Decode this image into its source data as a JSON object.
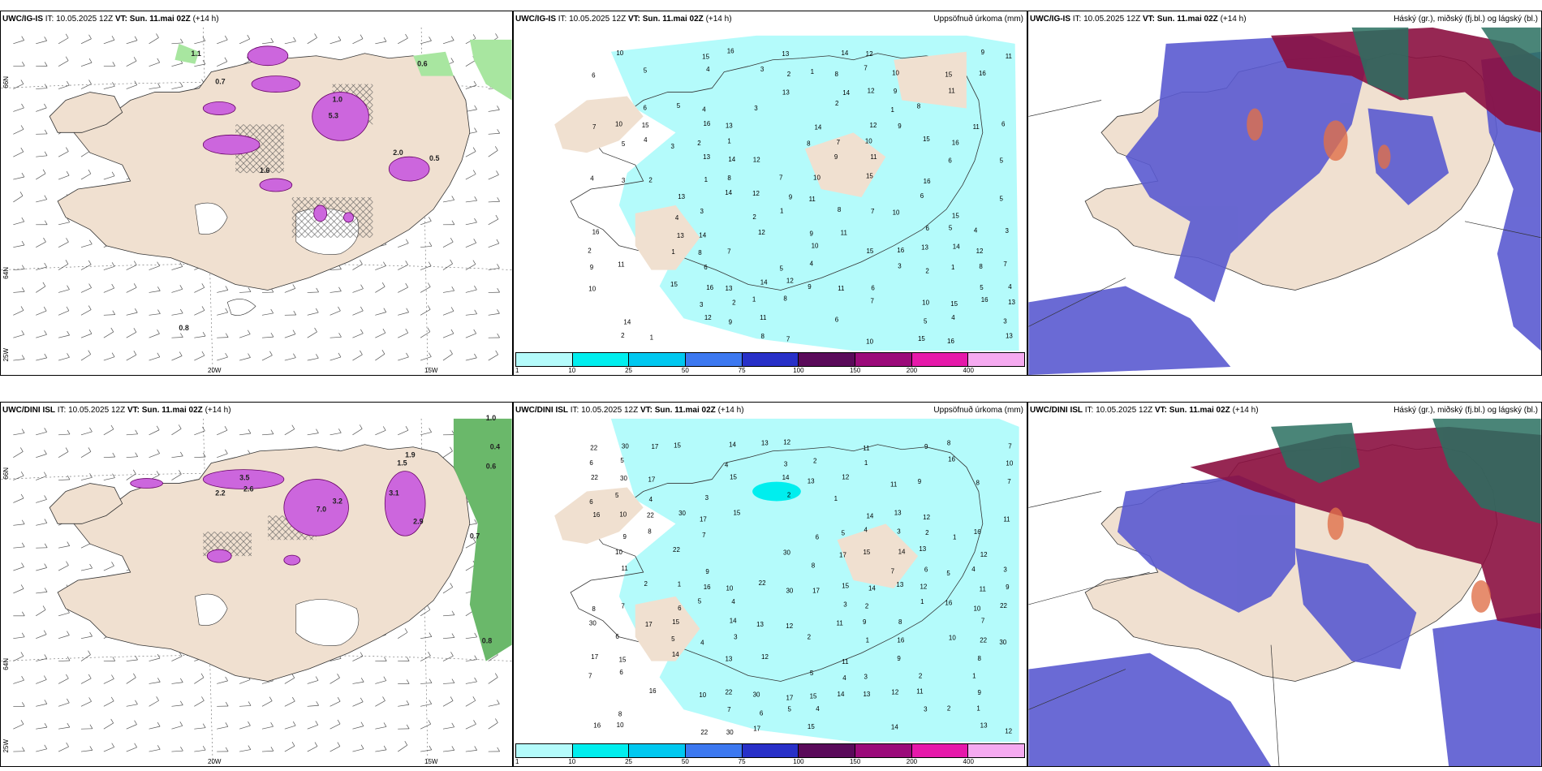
{
  "panels": {
    "p1": {
      "model": "UWC/IG-IS",
      "init": "IT: 10.05.2025 12Z",
      "vt": "VT: Sun. 11.mai 02Z",
      "lead": "(+14 h)"
    },
    "p2": {
      "model": "UWC/IG-IS",
      "init": "IT: 10.05.2025 12Z",
      "vt": "VT: Sun. 11.mai 02Z",
      "lead": "(+14 h)",
      "title": "Uppsöfnuð úrkoma (mm)"
    },
    "p3": {
      "model": "UWC/IG-IS",
      "init": "IT: 10.05.2025 12Z",
      "vt": "VT: Sun. 11.mai 02Z",
      "lead": "(+14 h)",
      "title": "Háský (gr.), miðský (fj.bl.) og lágský (bl.)"
    },
    "p4": {
      "model": "UWC/DINI ISL",
      "init": "IT: 10.05.2025 12Z",
      "vt": "VT: Sun. 11.mai 02Z",
      "lead": "(+14 h)"
    },
    "p5": {
      "model": "UWC/DINI ISL",
      "init": "IT: 10.05.2025 12Z",
      "vt": "VT: Sun. 11.mai 02Z",
      "lead": "(+14 h)",
      "title": "Uppsöfnuð úrkoma (mm)"
    },
    "p6": {
      "model": "UWC/DINI ISL",
      "init": "IT: 10.05.2025 12Z",
      "vt": "VT: Sun. 11.mai 02Z",
      "lead": "(+14 h)",
      "title": "Háský (gr.), miðský (fj.bl.) og lágský (bl.)"
    }
  },
  "axes": {
    "lat_top": "66N",
    "lat_bottom": "64N",
    "lon_left": "25W",
    "lon_mid": "20W",
    "lon_right": "15W"
  },
  "colorbar": {
    "labels": [
      "1",
      "10",
      "25",
      "50",
      "75",
      "100",
      "150",
      "200",
      "400"
    ],
    "colors": [
      "#b4fbfb",
      "#00eeee",
      "#00c8f0",
      "#3c78f0",
      "#2830c8",
      "#5a0a5a",
      "#9b0a7a",
      "#e619aa",
      "#f5aaf0"
    ]
  },
  "precip_values_top": [
    "10",
    "15",
    "16",
    "13",
    "14",
    "12",
    "9",
    "11",
    "6",
    "5",
    "4",
    "3",
    "2",
    "1",
    "8",
    "7"
  ],
  "precip_values_bottom": [
    "22",
    "30",
    "17",
    "15",
    "14",
    "13",
    "12",
    "11",
    "9",
    "8",
    "7",
    "6",
    "5",
    "4",
    "3",
    "2",
    "1",
    "16",
    "10"
  ],
  "precip_rate_labels_top": [
    "1.1",
    "0.6",
    "0.5",
    "2.0",
    "0.7",
    "1.0",
    "1.6",
    "0.8",
    "5.3"
  ],
  "precip_rate_labels_bottom": [
    "1.0",
    "0.4",
    "0.6",
    "0.7",
    "0.8",
    "1.9",
    "3.1",
    "3.5",
    "7.0",
    "3.2",
    "2.9",
    "2.6",
    "2.2",
    "1.5"
  ],
  "land_color": "#f0e0d0",
  "sea_color": "#ffffff"
}
